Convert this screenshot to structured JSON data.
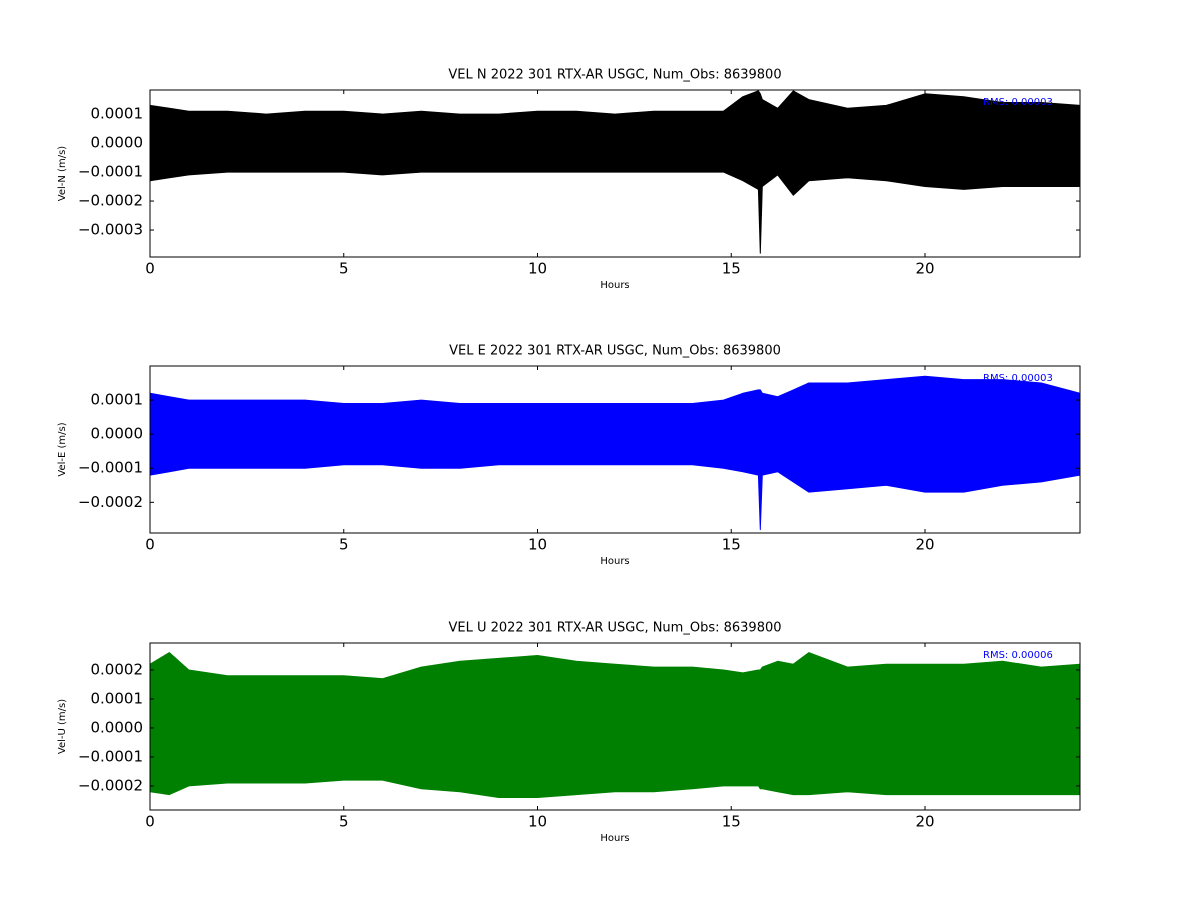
{
  "chart_data": [
    {
      "type": "band",
      "title": "VEL N 2022 301 RTX-AR  USGC, Num_Obs: 8639800",
      "xlabel": "Hours",
      "ylabel": "Vel-N (m/s)",
      "annotation": "RMS:  0.00003",
      "color": "#000000",
      "xlim": [
        0,
        24
      ],
      "xticks": [
        0,
        5,
        10,
        15,
        20
      ],
      "ylim": [
        -0.000393,
        0.000183
      ],
      "yticks": [
        {
          "value": 0.0001,
          "label": "0.0001"
        },
        {
          "value": 0,
          "label": "0.0000"
        },
        {
          "value": -0.0001,
          "label": "−0.0001"
        },
        {
          "value": -0.0002,
          "label": "−0.0002"
        },
        {
          "value": -0.0003,
          "label": "−0.0003"
        }
      ],
      "x": [
        0,
        0.5,
        1,
        2,
        3,
        4,
        5,
        6,
        7,
        8,
        9,
        10,
        11,
        12,
        13,
        14,
        14.8,
        15.3,
        15.7,
        15.75,
        15.8,
        16.2,
        16.6,
        17,
        18,
        19,
        20,
        21,
        22,
        23,
        24
      ],
      "high": [
        0.00013,
        0.00012,
        0.00011,
        0.00011,
        0.0001,
        0.00011,
        0.00011,
        0.0001,
        0.00011,
        0.0001,
        0.0001,
        0.00011,
        0.00011,
        0.0001,
        0.00011,
        0.00011,
        0.00011,
        0.00016,
        0.00018,
        0.00017,
        0.00015,
        0.00012,
        0.00018,
        0.00015,
        0.00012,
        0.00013,
        0.00017,
        0.00016,
        0.00014,
        0.00014,
        0.00013
      ],
      "low": [
        -0.00013,
        -0.00012,
        -0.00011,
        -0.0001,
        -0.0001,
        -0.0001,
        -0.0001,
        -0.00011,
        -0.0001,
        -0.0001,
        -0.0001,
        -0.0001,
        -0.0001,
        -0.0001,
        -0.0001,
        -0.0001,
        -0.0001,
        -0.00013,
        -0.00016,
        -0.00038,
        -0.00015,
        -0.00011,
        -0.00018,
        -0.00013,
        -0.00012,
        -0.00013,
        -0.00015,
        -0.00016,
        -0.00015,
        -0.00015,
        -0.00015
      ]
    },
    {
      "type": "band",
      "title": "VEL E 2022 301 RTX-AR  USGC, Num_Obs: 8639800",
      "xlabel": "Hours",
      "ylabel": "Vel-E (m/s)",
      "annotation": "RMS:  0.00003",
      "color": "#0000ff",
      "xlim": [
        0,
        24
      ],
      "xticks": [
        0,
        5,
        10,
        15,
        20
      ],
      "ylim": [
        -0.00029,
        0.0002
      ],
      "yticks": [
        {
          "value": 0.0001,
          "label": "0.0001"
        },
        {
          "value": 0,
          "label": "0.0000"
        },
        {
          "value": -0.0001,
          "label": "−0.0001"
        },
        {
          "value": -0.0002,
          "label": "−0.0002"
        }
      ],
      "x": [
        0,
        0.5,
        1,
        2,
        3,
        4,
        5,
        6,
        7,
        8,
        9,
        10,
        11,
        12,
        13,
        14,
        14.8,
        15.3,
        15.7,
        15.75,
        15.8,
        16.2,
        16.6,
        17,
        18,
        19,
        20,
        21,
        22,
        23,
        24
      ],
      "high": [
        0.00012,
        0.00011,
        0.0001,
        0.0001,
        0.0001,
        0.0001,
        9e-05,
        9e-05,
        0.0001,
        9e-05,
        9e-05,
        9e-05,
        9e-05,
        9e-05,
        9e-05,
        9e-05,
        0.0001,
        0.00012,
        0.00013,
        0.00013,
        0.00012,
        0.00011,
        0.00013,
        0.00015,
        0.00015,
        0.00016,
        0.00017,
        0.00016,
        0.00016,
        0.00015,
        0.00012
      ],
      "low": [
        -0.00012,
        -0.00011,
        -0.0001,
        -0.0001,
        -0.0001,
        -0.0001,
        -9e-05,
        -9e-05,
        -0.0001,
        -0.0001,
        -9e-05,
        -9e-05,
        -9e-05,
        -9e-05,
        -9e-05,
        -9e-05,
        -0.0001,
        -0.00011,
        -0.00012,
        -0.00028,
        -0.00012,
        -0.00011,
        -0.00014,
        -0.00017,
        -0.00016,
        -0.00015,
        -0.00017,
        -0.00017,
        -0.00015,
        -0.00014,
        -0.00012
      ]
    },
    {
      "type": "band",
      "title": "VEL U 2022 301 RTX-AR  USGC, Num_Obs: 8639800",
      "xlabel": "Hours",
      "ylabel": "Vel-U (m/s)",
      "annotation": "RMS:  0.00006",
      "color": "#008000",
      "xlim": [
        0,
        24
      ],
      "xticks": [
        0,
        5,
        10,
        15,
        20
      ],
      "ylim": [
        -0.000283,
        0.000293
      ],
      "yticks": [
        {
          "value": 0.0002,
          "label": "0.0002"
        },
        {
          "value": 0.0001,
          "label": "0.0001"
        },
        {
          "value": 0,
          "label": "0.0000"
        },
        {
          "value": -0.0001,
          "label": "−0.0001"
        },
        {
          "value": -0.0002,
          "label": "−0.0002"
        }
      ],
      "x": [
        0,
        0.5,
        1,
        2,
        3,
        4,
        5,
        6,
        7,
        8,
        9,
        10,
        11,
        12,
        13,
        14,
        14.8,
        15.3,
        15.7,
        15.75,
        15.8,
        16.2,
        16.6,
        17,
        18,
        19,
        20,
        21,
        22,
        23,
        24
      ],
      "high": [
        0.00022,
        0.00026,
        0.0002,
        0.00018,
        0.00018,
        0.00018,
        0.00018,
        0.00017,
        0.00021,
        0.00023,
        0.00024,
        0.00025,
        0.00023,
        0.00022,
        0.00021,
        0.00021,
        0.0002,
        0.00019,
        0.0002,
        0.0002,
        0.00021,
        0.00023,
        0.00022,
        0.00026,
        0.00021,
        0.00022,
        0.00022,
        0.00022,
        0.00023,
        0.00021,
        0.00022
      ],
      "low": [
        -0.00022,
        -0.00023,
        -0.0002,
        -0.00019,
        -0.00019,
        -0.00019,
        -0.00018,
        -0.00018,
        -0.00021,
        -0.00022,
        -0.00024,
        -0.00024,
        -0.00023,
        -0.00022,
        -0.00022,
        -0.00021,
        -0.0002,
        -0.0002,
        -0.0002,
        -0.00021,
        -0.00021,
        -0.00022,
        -0.00023,
        -0.00023,
        -0.00022,
        -0.00023,
        -0.00023,
        -0.00023,
        -0.00023,
        -0.00023,
        -0.00023
      ]
    }
  ]
}
